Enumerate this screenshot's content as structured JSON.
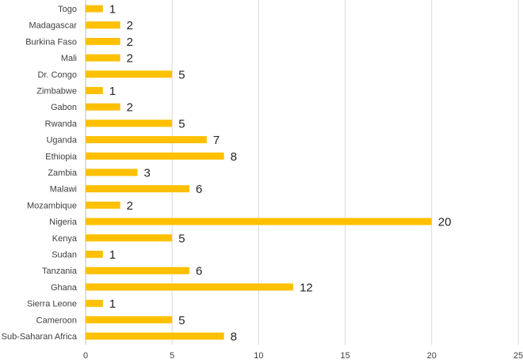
{
  "chart_data": {
    "type": "bar",
    "orientation": "horizontal",
    "categories": [
      "Togo",
      "Madagascar",
      "Burkina Faso",
      "Mali",
      "Dr. Congo",
      "Zimbabwe",
      "Gabon",
      "Rwanda",
      "Uganda",
      "Ethiopia",
      "Zambia",
      "Malawi",
      "Mozambique",
      "Nigeria",
      "Kenya",
      "Sudan",
      "Tanzania",
      "Ghana",
      "Sierra Leone",
      "Cameroon",
      "Sub-Saharan Africa"
    ],
    "values": [
      1,
      2,
      2,
      2,
      5,
      1,
      2,
      5,
      7,
      8,
      3,
      6,
      2,
      20,
      5,
      1,
      6,
      12,
      1,
      5,
      8
    ],
    "data_labels": [
      "1",
      "2",
      "2",
      "2",
      "5",
      "1",
      "2",
      "5",
      "7",
      "8",
      "3",
      "6",
      "2",
      "20",
      "5",
      "1",
      "6",
      "12",
      "1",
      "5",
      "8"
    ],
    "title": "",
    "xlabel": "",
    "ylabel": "",
    "xlim": [
      0,
      25
    ],
    "xticks": [
      "0",
      "5",
      "10",
      "15",
      "20",
      "25"
    ],
    "grid": "vertical",
    "legend": "none",
    "bar_color": "#FFC000"
  }
}
